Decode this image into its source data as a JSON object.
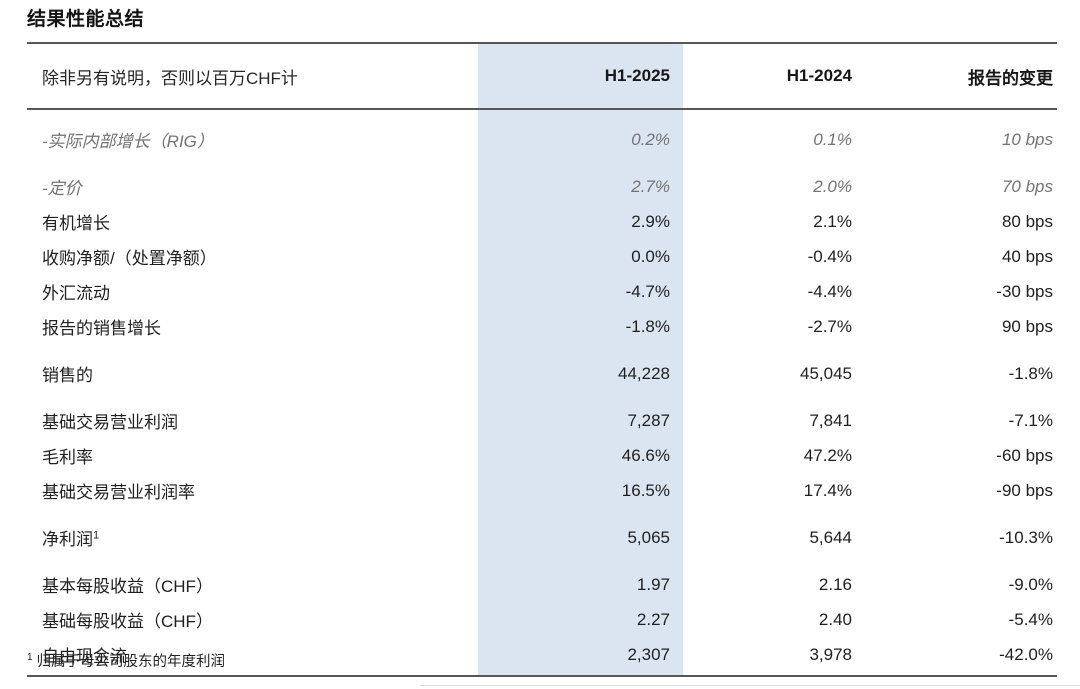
{
  "page": {
    "title": "结果性能总结",
    "footnote_marker": "1",
    "footnote_text": "归属于母公司股东的年度利润"
  },
  "colors": {
    "highlight_column": "#dbe5f1",
    "rule": "#565656",
    "muted_text": "#737373"
  },
  "table": {
    "unit_note": "除非另有说明，否则以百万CHF计",
    "columns": [
      "H1-2025",
      "H1-2024",
      "报告的变更"
    ],
    "highlighted_column": "H1-2025",
    "rows": [
      {
        "label": "-实际内部增长（RIG）",
        "h1_2025": "0.2%",
        "h1_2024": "0.1%",
        "change": "10 bps",
        "style": "muted-italic",
        "gap": true
      },
      {
        "label": "-定价",
        "h1_2025": "2.7%",
        "h1_2024": "2.0%",
        "change": "70 bps",
        "style": "muted-italic",
        "gap": true
      },
      {
        "label": "有机增长",
        "h1_2025": "2.9%",
        "h1_2024": "2.1%",
        "change": "80 bps",
        "style": "normal",
        "gap": false
      },
      {
        "label": "收购净额/（处置净额）",
        "h1_2025": "0.0%",
        "h1_2024": "-0.4%",
        "change": "40 bps",
        "style": "normal",
        "gap": false
      },
      {
        "label": "外汇流动",
        "h1_2025": "-4.7%",
        "h1_2024": "-4.4%",
        "change": "-30 bps",
        "style": "normal",
        "gap": false
      },
      {
        "label": "报告的销售增长",
        "h1_2025": "-1.8%",
        "h1_2024": "-2.7%",
        "change": "90 bps",
        "style": "normal",
        "gap": false
      },
      {
        "label": "销售的",
        "h1_2025": "44,228",
        "h1_2024": "45,045",
        "change": "-1.8%",
        "style": "normal",
        "gap": true
      },
      {
        "label": "基础交易营业利润",
        "h1_2025": "7,287",
        "h1_2024": "7,841",
        "change": "-7.1%",
        "style": "normal",
        "gap": true
      },
      {
        "label": "毛利率",
        "h1_2025": "46.6%",
        "h1_2024": "47.2%",
        "change": "-60 bps",
        "style": "normal",
        "gap": false
      },
      {
        "label": "基础交易营业利润率",
        "h1_2025": "16.5%",
        "h1_2024": "17.4%",
        "change": "-90 bps",
        "style": "normal",
        "gap": false
      },
      {
        "label": "净利润",
        "sup": "1",
        "h1_2025": "5,065",
        "h1_2024": "5,644",
        "change": "-10.3%",
        "style": "normal",
        "gap": true
      },
      {
        "label": "基本每股收益（CHF）",
        "h1_2025": "1.97",
        "h1_2024": "2.16",
        "change": "-9.0%",
        "style": "normal",
        "gap": true
      },
      {
        "label": "基础每股收益（CHF）",
        "h1_2025": "2.27",
        "h1_2024": "2.40",
        "change": "-5.4%",
        "style": "normal",
        "gap": false
      },
      {
        "label": "自由现金流",
        "h1_2025": "2,307",
        "h1_2024": "3,978",
        "change": "-42.0%",
        "style": "normal",
        "gap": false
      }
    ]
  }
}
